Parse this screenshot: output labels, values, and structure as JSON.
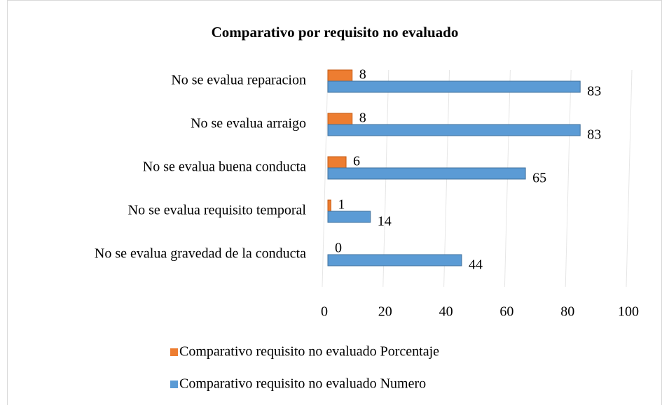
{
  "chart_data": {
    "type": "bar",
    "orientation": "horizontal",
    "title": "Comparativo por requisito no evaluado",
    "categories": [
      "No se evalua reparacion",
      "No se evalua arraigo",
      "No se evalua buena conducta",
      "No se evalua requisito temporal",
      "No se evalua gravedad de la conducta"
    ],
    "series": [
      {
        "name": "Comparativo requisito no evaluado Porcentaje",
        "color": "#ed7d31",
        "values": [
          8,
          8,
          6,
          1,
          0
        ]
      },
      {
        "name": "Comparativo requisito no evaluado Numero",
        "color": "#5b9bd5",
        "values": [
          83,
          83,
          65,
          14,
          44
        ]
      }
    ],
    "xlim": [
      0,
      100
    ],
    "xticks": [
      0,
      20,
      40,
      60,
      80,
      100
    ],
    "grid": true,
    "legend": "bottom"
  }
}
